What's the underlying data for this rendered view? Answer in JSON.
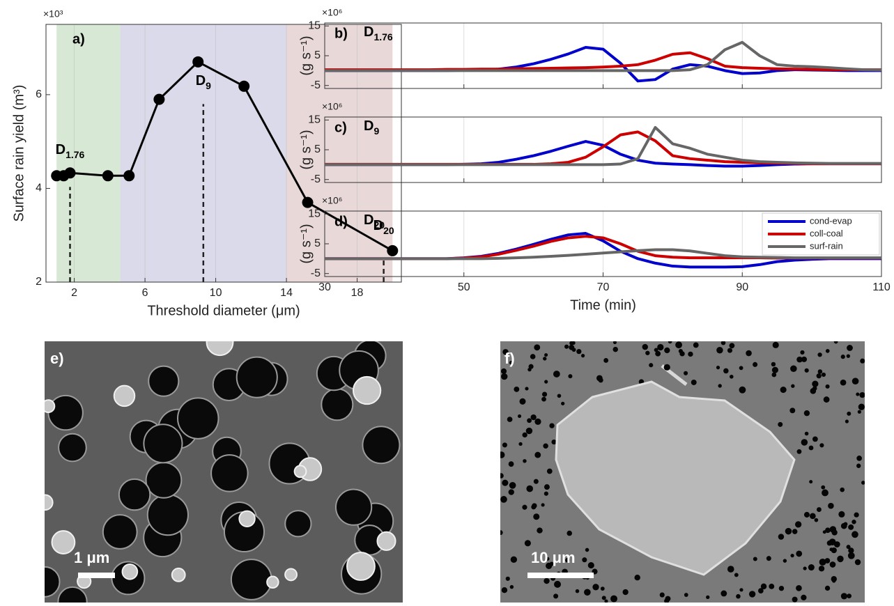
{
  "chart_data": [
    {
      "type": "line",
      "xlabel": "Threshold diameter (μm)",
      "ylabel": "Surface rain yield (m³)",
      "y_exponent": "×10³",
      "title": "a)",
      "xlim": [
        0.4,
        20.5
      ],
      "ylim": [
        2,
        7.5
      ],
      "xticks": [
        2,
        6,
        10,
        14,
        18
      ],
      "yticks": [
        2,
        4,
        6
      ],
      "grid": "x",
      "markers": true,
      "regions": [
        {
          "xlim": [
            1,
            4.6
          ],
          "color": "#d7e8d4"
        },
        {
          "xlim": [
            4.6,
            14
          ],
          "color": "#dadaea"
        },
        {
          "xlim": [
            14,
            20
          ],
          "color": "#e8d8d8"
        }
      ],
      "series": [
        {
          "color": "#000000",
          "x": [
            1,
            1.4,
            1.76,
            3.9,
            5.1,
            6.8,
            9,
            11.6,
            15.2,
            20
          ],
          "values": [
            4.27,
            4.27,
            4.33,
            4.27,
            4.27,
            5.9,
            6.7,
            6.18,
            3.7,
            2.67
          ]
        }
      ],
      "annotations": [
        {
          "text": "D",
          "sub": "1.76",
          "x": 1.76,
          "y": 4.81,
          "line_top": 4.03
        },
        {
          "text": "D",
          "sub": "9",
          "x": 9.3,
          "y": 6.28,
          "line_top": 5.8
        },
        {
          "text": "D",
          "sub": "20",
          "x": 19.5,
          "y": 3.19,
          "line_top": 2.47
        }
      ]
    },
    {
      "type": "line",
      "title": "b)",
      "label": {
        "text": "D",
        "sub": "1.76"
      },
      "ylabel": "(g s⁻¹)",
      "y_exponent": "×10⁶",
      "xlim": [
        30,
        110
      ],
      "ylim": [
        -6,
        16
      ],
      "xticks": [
        30,
        50,
        70,
        90,
        110
      ],
      "yticks": [
        -5,
        5,
        15
      ],
      "grid": "x",
      "x": [
        30,
        32.5,
        35,
        37.5,
        40,
        42.5,
        45,
        47.5,
        50,
        52.5,
        55,
        57.5,
        60,
        62.5,
        65,
        67.5,
        70,
        72.5,
        75,
        77.5,
        80,
        82.5,
        85,
        87.5,
        90,
        92.5,
        95,
        97.5,
        100,
        102.5,
        105,
        107.5,
        110
      ],
      "series": [
        {
          "color": "#0000cc",
          "values": [
            0,
            0,
            0,
            0,
            0,
            0,
            0,
            0,
            0.1,
            0.2,
            0.5,
            1.2,
            2.3,
            3.8,
            5.6,
            7.8,
            7.2,
            2.5,
            -3.5,
            -3,
            0.5,
            2,
            1.5,
            0,
            -1,
            -0.8,
            0,
            0.3,
            0.2,
            0.1,
            0,
            0,
            0
          ]
        },
        {
          "color": "#cc0000",
          "values": [
            0.3,
            0.3,
            0.3,
            0.3,
            0.3,
            0.3,
            0.3,
            0.4,
            0.4,
            0.5,
            0.5,
            0.6,
            0.7,
            0.8,
            0.9,
            1,
            1.2,
            1.5,
            2,
            3.5,
            5.5,
            6,
            4,
            1.5,
            1,
            0.8,
            0.6,
            0.5,
            0.4,
            0.3,
            0.3,
            0.3,
            0.3
          ]
        },
        {
          "color": "#666666",
          "values": [
            0,
            0,
            0,
            0,
            0,
            0,
            0,
            0,
            0,
            0,
            0,
            0,
            0,
            0,
            0,
            0,
            0,
            0,
            0,
            0,
            0,
            0.3,
            2,
            7,
            9.5,
            5,
            2,
            1.5,
            1.3,
            1,
            0.6,
            0.3,
            0.2
          ]
        }
      ]
    },
    {
      "type": "line",
      "title": "c)",
      "label": {
        "text": "D",
        "sub": "9"
      },
      "ylabel": "(g s⁻¹)",
      "y_exponent": "×10⁶",
      "xlim": [
        30,
        110
      ],
      "ylim": [
        -6,
        16
      ],
      "xticks": [
        30,
        50,
        70,
        90,
        110
      ],
      "yticks": [
        -5,
        5,
        15
      ],
      "grid": "x",
      "x": [
        30,
        32.5,
        35,
        37.5,
        40,
        42.5,
        45,
        47.5,
        50,
        52.5,
        55,
        57.5,
        60,
        62.5,
        65,
        67.5,
        70,
        72.5,
        75,
        77.5,
        80,
        82.5,
        85,
        87.5,
        90,
        92.5,
        95,
        97.5,
        100,
        102.5,
        105,
        107.5,
        110
      ],
      "series": [
        {
          "color": "#0000cc",
          "values": [
            0,
            0,
            0,
            0,
            0,
            0,
            0,
            0,
            0.1,
            0.3,
            0.8,
            1.8,
            3,
            4.5,
            6.2,
            7.8,
            6.5,
            3.5,
            1.5,
            0.5,
            0.2,
            0,
            -0.3,
            -0.5,
            -0.5,
            -0.3,
            0,
            0.2,
            0.3,
            0.3,
            0.3,
            0.3,
            0.3
          ]
        },
        {
          "color": "#cc0000",
          "values": [
            0.1,
            0.1,
            0.1,
            0.1,
            0.1,
            0.1,
            0.1,
            0.1,
            0.1,
            0.1,
            0.1,
            0.1,
            0.1,
            0.3,
            0.8,
            2.5,
            6,
            10,
            11,
            8,
            3,
            2,
            1.5,
            1,
            0.8,
            0.6,
            0.5,
            0.4,
            0.3,
            0.3,
            0.3,
            0.3,
            0.3
          ]
        },
        {
          "color": "#666666",
          "values": [
            0,
            0,
            0,
            0,
            0,
            0,
            0,
            0,
            0,
            0,
            0,
            0,
            0,
            0,
            0,
            0,
            0,
            0.2,
            2,
            12.5,
            7,
            5.5,
            3.5,
            2.5,
            1.5,
            1,
            0.8,
            0.6,
            0.5,
            0.4,
            0.4,
            0.4,
            0.4
          ]
        }
      ]
    },
    {
      "type": "line",
      "title": "d)",
      "label": {
        "text": "D",
        "sub": "20"
      },
      "ylabel": "(g s⁻¹)",
      "y_exponent": "×10⁶",
      "xlabel": "Time (min)",
      "xlim": [
        30,
        110
      ],
      "ylim": [
        -6,
        16
      ],
      "xticks": [
        30,
        50,
        70,
        90,
        110
      ],
      "yticks": [
        -5,
        5,
        15
      ],
      "grid": "x",
      "legend": "upper right",
      "x": [
        30,
        32.5,
        35,
        37.5,
        40,
        42.5,
        45,
        47.5,
        50,
        52.5,
        55,
        57.5,
        60,
        62.5,
        65,
        67.5,
        70,
        72.5,
        75,
        77.5,
        80,
        82.5,
        85,
        87.5,
        90,
        92.5,
        95,
        97.5,
        100,
        102.5,
        105,
        107.5,
        110
      ],
      "series": [
        {
          "name": "cond-evap",
          "color": "#0000cc",
          "values": [
            0,
            0,
            0,
            0,
            0,
            0,
            0,
            0,
            0.3,
            0.8,
            1.8,
            3.2,
            4.8,
            6.5,
            8,
            8.5,
            6,
            2.5,
            0,
            -1.5,
            -2.5,
            -2.8,
            -2.8,
            -2.8,
            -2.7,
            -2,
            -1,
            -0.5,
            -0.2,
            0,
            0,
            0,
            0
          ]
        },
        {
          "name": "coll-coal",
          "color": "#cc0000",
          "values": [
            0,
            0,
            0,
            0,
            0,
            0,
            0,
            0,
            0.2,
            0.6,
            1.5,
            2.8,
            4.2,
            5.8,
            7,
            7.5,
            7,
            5,
            2.5,
            1,
            0.5,
            0.3,
            0.3,
            0.3,
            0.3,
            0.3,
            0.2,
            0.2,
            0.2,
            0.2,
            0.2,
            0.2,
            0.2
          ]
        },
        {
          "name": "surf-rain",
          "color": "#666666",
          "values": [
            0,
            0,
            0,
            0,
            0,
            0,
            0,
            0,
            0,
            0,
            0.1,
            0.3,
            0.5,
            0.8,
            1.1,
            1.5,
            1.9,
            2.3,
            2.7,
            3,
            3,
            2.6,
            1.8,
            1,
            0.6,
            0.5,
            0.4,
            0.3,
            0.3,
            0.3,
            0.3,
            0.3,
            0.3
          ]
        }
      ]
    }
  ],
  "images": [
    {
      "label": "e)",
      "scale_bar": "1 μm"
    },
    {
      "label": "f)",
      "scale_bar": "10 μm"
    }
  ]
}
